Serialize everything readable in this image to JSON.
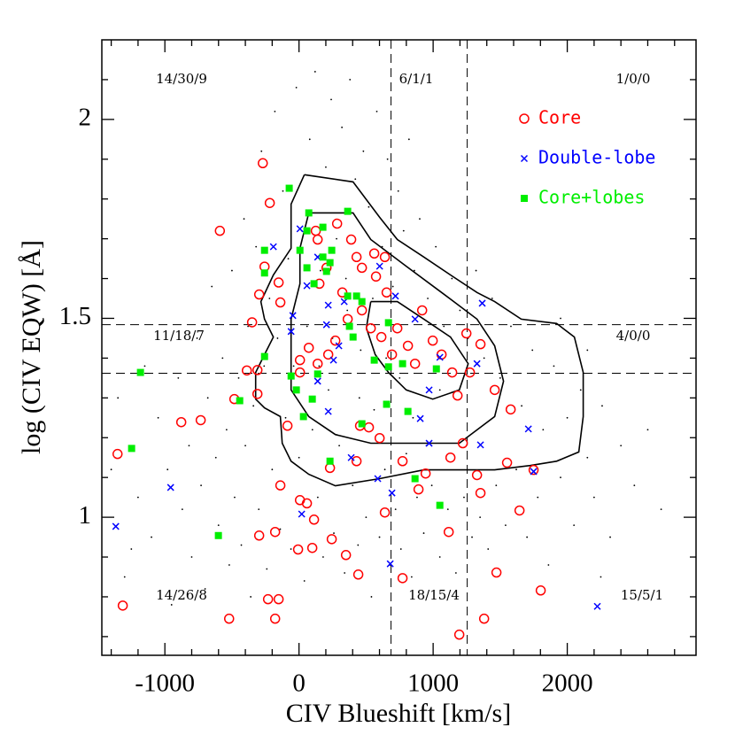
{
  "chart_data": {
    "type": "scatter",
    "xlabel": "CIV Blueshift [km/s]",
    "ylabel": "log (CIV EQW) [Å]",
    "xlim": [
      -1470,
      2960
    ],
    "ylim": [
      0.653,
      2.2
    ],
    "xticks": [
      -1000,
      0,
      1000,
      2000
    ],
    "yticks": [
      1,
      1.5,
      2
    ],
    "xminorticks": [
      -1400,
      -1200,
      -800,
      -600,
      -400,
      -200,
      200,
      400,
      600,
      800,
      1200,
      1400,
      1600,
      1800,
      2200,
      2400,
      2600,
      2800
    ],
    "yminorticks": [
      0.7,
      0.8,
      0.9,
      1.1,
      1.2,
      1.3,
      1.4,
      1.6,
      1.7,
      1.8,
      1.9,
      2.1
    ],
    "legend": "upper right",
    "vlines": [
      686,
      1254
    ],
    "hlines": [
      1.484,
      1.362
    ],
    "annotations": [
      "14/30/9",
      "6/1/1",
      "1/0/0",
      "11/18/7",
      "4/0/0",
      "14/26/8",
      "18/15/4",
      "15/5/1"
    ],
    "background": {
      "color": "#000000",
      "x": [
        -1300,
        -1200,
        -1100,
        -1050,
        -980,
        -950,
        -900,
        -870,
        -820,
        -800,
        -760,
        -730,
        -700,
        -680,
        -650,
        -620,
        -600,
        -570,
        -540,
        -520,
        -500,
        -480,
        -450,
        -430,
        -410,
        -400,
        -380,
        -360,
        -340,
        -320,
        -300,
        -280,
        -260,
        -240,
        -220,
        -200,
        -180,
        -160,
        -140,
        -120,
        -100,
        -80,
        -60,
        -40,
        -20,
        0,
        20,
        40,
        60,
        80,
        100,
        120,
        140,
        160,
        180,
        200,
        220,
        240,
        260,
        280,
        300,
        320,
        340,
        360,
        380,
        400,
        420,
        440,
        460,
        480,
        500,
        520,
        540,
        560,
        580,
        600,
        620,
        640,
        660,
        680,
        700,
        720,
        740,
        760,
        780,
        800,
        820,
        840,
        860,
        880,
        900,
        930,
        960,
        990,
        1020,
        1050,
        1080,
        1110,
        1140,
        1170,
        1200,
        1230,
        1260,
        1290,
        1320,
        1350,
        1380,
        1410,
        1440,
        1470,
        1500,
        1540,
        1580,
        1620,
        1660,
        1700,
        1740,
        1780,
        1820,
        1860,
        1900,
        1950,
        2000,
        2050,
        2100,
        2150,
        2200,
        2260,
        2320,
        2400,
        2500,
        2600,
        2700,
        -1400,
        -1350,
        -1250,
        -1150,
        2150,
        1950,
        2250,
        250,
        450,
        650,
        850,
        1050,
        350,
        550,
        750,
        150,
        950
      ],
      "y": [
        0.85,
        1.05,
        0.95,
        1.25,
        1.12,
        0.78,
        1.35,
        1.02,
        1.18,
        0.9,
        1.45,
        1.08,
        0.82,
        1.3,
        1.58,
        1.15,
        0.98,
        1.4,
        1.22,
        0.88,
        1.62,
        1.05,
        1.35,
        0.93,
        1.75,
        1.18,
        1.48,
        0.8,
        1.28,
        1.68,
        1.02,
        1.92,
        1.38,
        0.87,
        1.55,
        1.12,
        2.02,
        1.45,
        0.97,
        1.82,
        1.25,
        1.65,
        0.92,
        1.38,
        2.08,
        1.15,
        1.72,
        0.84,
        1.48,
        1.95,
        1.22,
        2.12,
        1.05,
        1.62,
        0.9,
        1.88,
        1.32,
        2.05,
        0.96,
        1.7,
        1.18,
        1.98,
        0.86,
        1.52,
        2.1,
        1.08,
        1.85,
        0.93,
        1.42,
        1.92,
        1.0,
        1.78,
        0.8,
        1.27,
        2.02,
        0.95,
        1.68,
        1.12,
        1.9,
        0.88,
        1.58,
        1.02,
        1.82,
        0.92,
        1.72,
        1.16,
        1.95,
        0.85,
        1.62,
        1.05,
        1.75,
        0.96,
        1.55,
        1.08,
        1.68,
        0.9,
        1.48,
        1.02,
        1.6,
        0.86,
        1.52,
        1.05,
        1.45,
        0.95,
        1.62,
        1.0,
        1.4,
        0.92,
        1.55,
        1.08,
        1.35,
        0.98,
        1.48,
        1.12,
        1.28,
        0.95,
        1.42,
        1.05,
        1.22,
        0.88,
        1.38,
        1.1,
        1.25,
        0.98,
        1.32,
        1.15,
        1.05,
        1.28,
        0.95,
        1.18,
        1.08,
        1.22,
        1.02,
        1.12,
        1.3,
        0.92,
        1.38,
        1.42,
        1.5,
        0.85,
        1.45,
        1.3,
        1.4,
        1.25,
        1.32,
        1.6,
        1.55,
        1.35,
        1.38,
        1.18
      ]
    },
    "contours": [
      {
        "x": [
          40,
          403,
          601,
          733,
          931,
          1129,
          1327,
          1459,
          1657,
          1921,
          2053,
          2119,
          2119,
          2086,
          1921,
          1723,
          1459,
          1195,
          931,
          601,
          271,
          73,
          -59,
          -125,
          -139,
          -257,
          -323,
          -323,
          -257,
          -191,
          -257,
          -284,
          -191,
          -59,
          -59,
          40
        ],
        "y": [
          1.861,
          1.843,
          1.754,
          1.698,
          1.654,
          1.609,
          1.565,
          1.542,
          1.498,
          1.487,
          1.453,
          1.364,
          1.253,
          1.164,
          1.141,
          1.13,
          1.119,
          1.119,
          1.119,
          1.097,
          1.079,
          1.108,
          1.141,
          1.186,
          1.253,
          1.275,
          1.297,
          1.364,
          1.409,
          1.453,
          1.498,
          1.542,
          1.609,
          1.676,
          1.787,
          1.861
        ]
      },
      {
        "x": [
          73,
          403,
          535,
          799,
          1063,
          1327,
          1459,
          1525,
          1459,
          1195,
          931,
          535,
          271,
          73,
          -59,
          -59,
          -59,
          7,
          7,
          73
        ],
        "y": [
          1.765,
          1.765,
          1.698,
          1.631,
          1.565,
          1.498,
          1.431,
          1.342,
          1.253,
          1.186,
          1.186,
          1.186,
          1.208,
          1.253,
          1.32,
          1.409,
          1.498,
          1.587,
          1.676,
          1.765
        ]
      },
      {
        "x": [
          535,
          733,
          931,
          1129,
          1261,
          1195,
          997,
          799,
          667,
          568,
          502,
          535
        ],
        "y": [
          1.542,
          1.542,
          1.498,
          1.453,
          1.386,
          1.32,
          1.297,
          1.32,
          1.364,
          1.409,
          1.476,
          1.542
        ]
      }
    ],
    "series": [
      {
        "name": "Core",
        "color": "#ff0000",
        "marker": "circle",
        "x": [
          -270,
          -590,
          -1353,
          -1314,
          -878,
          -733,
          -482,
          -389,
          -350,
          -297,
          -257,
          -152,
          -218,
          -310,
          -310,
          -139,
          -86,
          -139,
          -297,
          -178,
          -231,
          -152,
          -178,
          -521,
          -7,
          7,
          59,
          112,
          99,
          244,
          350,
          442,
          231,
          429,
          7,
          7,
          73,
          139,
          218,
          271,
          363,
          469,
          535,
          653,
          614,
          693,
          733,
          812,
          865,
          918,
          997,
          1063,
          1142,
          1182,
          1248,
          1274,
          1353,
          1459,
          1578,
          1551,
          1221,
          1129,
          1327,
          1353,
          1749,
          1644,
          1472,
          1802,
          1380,
          1195,
          1116,
          772,
          640,
          891,
          944,
          772,
          601,
          521,
          455,
          389,
          429,
          469,
          561,
          284,
          125,
          205,
          152,
          323,
          574,
          640,
          139
        ],
        "values": [
          1.89,
          1.72,
          1.159,
          0.778,
          1.239,
          1.244,
          1.297,
          1.369,
          1.49,
          1.56,
          1.63,
          1.59,
          1.79,
          1.37,
          1.31,
          1.54,
          1.23,
          1.08,
          0.954,
          0.963,
          0.794,
          0.794,
          0.745,
          0.745,
          0.919,
          1.043,
          1.035,
          0.994,
          0.923,
          0.945,
          0.905,
          0.856,
          1.124,
          1.141,
          1.364,
          1.395,
          1.426,
          1.386,
          1.409,
          1.444,
          1.498,
          1.52,
          1.475,
          1.565,
          1.453,
          1.409,
          1.475,
          1.431,
          1.386,
          1.52,
          1.444,
          1.409,
          1.364,
          1.306,
          1.462,
          1.364,
          1.435,
          1.32,
          1.271,
          1.137,
          1.186,
          1.15,
          1.106,
          1.061,
          1.119,
          1.017,
          0.861,
          0.816,
          0.745,
          0.705,
          0.963,
          0.847,
          1.012,
          1.07,
          1.11,
          1.141,
          1.199,
          1.226,
          1.23,
          1.698,
          1.654,
          1.627,
          1.663,
          1.738,
          1.72,
          1.627,
          1.587,
          1.565,
          1.605,
          1.654,
          1.698
        ]
      },
      {
        "name": "Double-lobe",
        "color": "#0000ff",
        "marker": "cross",
        "x": [
          -1366,
          -957,
          -191,
          7,
          139,
          59,
          -46,
          -59,
          218,
          205,
          337,
          297,
          218,
          139,
          257,
          601,
          719,
          865,
          1050,
          970,
          904,
          970,
          1327,
          1366,
          1353,
          1710,
          1749,
          2224,
          680,
          20,
          389,
          587,
          693
        ],
        "values": [
          0.977,
          1.075,
          1.68,
          1.725,
          1.654,
          1.582,
          1.507,
          1.467,
          1.533,
          1.484,
          1.542,
          1.431,
          1.266,
          1.342,
          1.395,
          1.631,
          1.556,
          1.498,
          1.402,
          1.32,
          1.248,
          1.186,
          1.386,
          1.538,
          1.182,
          1.222,
          1.115,
          0.776,
          0.883,
          1.008,
          1.15,
          1.097,
          1.061
        ]
      },
      {
        "name": "Core+lobes",
        "color": "#00ee00",
        "marker": "square",
        "x": [
          -1182,
          -1248,
          -601,
          -442,
          -257,
          -257,
          -257,
          -73,
          73,
          59,
          7,
          59,
          112,
          178,
          231,
          205,
          178,
          363,
          244,
          -59,
          -20,
          33,
          99,
          139,
          231,
          363,
          429,
          469,
          376,
          403,
          561,
          667,
          772,
          812,
          653,
          469,
          865,
          1050,
          1024,
          667
        ],
        "values": [
          1.364,
          1.173,
          0.954,
          1.293,
          1.404,
          1.614,
          1.671,
          1.827,
          1.765,
          1.72,
          1.671,
          1.627,
          1.587,
          1.654,
          1.64,
          1.618,
          1.729,
          1.769,
          1.671,
          1.355,
          1.32,
          1.253,
          1.297,
          1.36,
          1.141,
          1.556,
          1.556,
          1.542,
          1.48,
          1.453,
          1.395,
          1.378,
          1.386,
          1.266,
          1.284,
          1.235,
          1.097,
          1.03,
          1.373,
          1.489
        ]
      }
    ]
  }
}
